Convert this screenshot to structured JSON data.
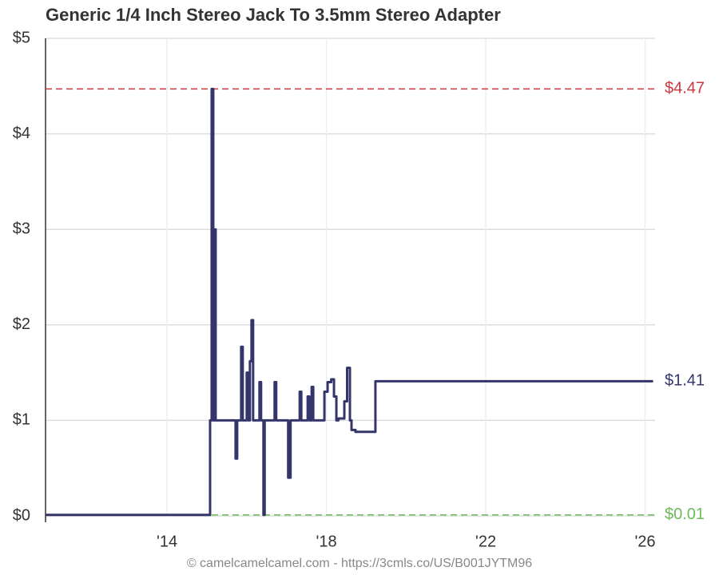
{
  "chart_data": {
    "type": "line",
    "title": "Generic 1/4 Inch Stereo Jack To 3.5mm Stereo Adapter",
    "footer": "© camelcamelcamel.com - https://3cmls.co/US/B001JYTM96",
    "color": "#34366b",
    "x": [
      2010.95,
      2015.08,
      2015.08,
      2015.12,
      2015.12,
      2015.16,
      2015.16,
      2015.2,
      2015.2,
      2015.22,
      2015.22,
      2015.72,
      2015.72,
      2015.76,
      2015.76,
      2015.86,
      2015.86,
      2015.9,
      2015.9,
      2016.0,
      2016.0,
      2016.04,
      2016.04,
      2016.08,
      2016.08,
      2016.12,
      2016.12,
      2016.16,
      2016.16,
      2016.32,
      2016.32,
      2016.36,
      2016.36,
      2016.42,
      2016.42,
      2016.45,
      2016.45,
      2016.7,
      2016.7,
      2016.74,
      2016.74,
      2017.04,
      2017.04,
      2017.1,
      2017.1,
      2017.33,
      2017.33,
      2017.37,
      2017.37,
      2017.53,
      2017.53,
      2017.57,
      2017.57,
      2017.63,
      2017.63,
      2017.67,
      2017.67,
      2017.95,
      2017.95,
      2018.03,
      2018.03,
      2018.12,
      2018.12,
      2018.19,
      2018.19,
      2018.25,
      2018.25,
      2018.3,
      2018.3,
      2018.45,
      2018.45,
      2018.52,
      2018.52,
      2018.59,
      2018.59,
      2018.63,
      2018.63,
      2018.73,
      2018.73,
      2019.23,
      2019.23,
      2026.2
    ],
    "values": [
      0.01,
      0.01,
      1.0,
      1.0,
      4.47,
      4.47,
      1.0,
      1.0,
      3.0,
      3.0,
      1.0,
      1.0,
      0.6,
      0.6,
      1.0,
      1.0,
      1.77,
      1.77,
      1.0,
      1.0,
      1.5,
      1.5,
      1.0,
      1.0,
      1.62,
      1.62,
      2.05,
      2.05,
      1.0,
      1.0,
      1.4,
      1.4,
      1.0,
      1.0,
      0.01,
      0.01,
      1.0,
      1.0,
      1.4,
      1.4,
      1.0,
      1.0,
      0.4,
      0.4,
      1.0,
      1.0,
      1.3,
      1.3,
      1.0,
      1.0,
      1.25,
      1.25,
      1.0,
      1.0,
      1.35,
      1.35,
      1.0,
      1.0,
      1.3,
      1.3,
      1.4,
      1.4,
      1.43,
      1.43,
      1.25,
      1.25,
      1.0,
      1.0,
      1.02,
      1.02,
      1.2,
      1.2,
      1.55,
      1.55,
      1.0,
      1.0,
      0.9,
      0.9,
      0.88,
      0.88,
      1.41,
      1.41
    ],
    "xlim": [
      2010.95,
      2026.25
    ],
    "ylim": [
      0,
      5
    ],
    "xticks": [
      {
        "value": 2014,
        "label": "'14"
      },
      {
        "value": 2018,
        "label": "'18"
      },
      {
        "value": 2022,
        "label": "'22"
      },
      {
        "value": 2026,
        "label": "'26"
      }
    ],
    "yticks": [
      {
        "value": 0,
        "label": "$0"
      },
      {
        "value": 1,
        "label": "$1"
      },
      {
        "value": 2,
        "label": "$2"
      },
      {
        "value": 3,
        "label": "$3"
      },
      {
        "value": 4,
        "label": "$4"
      },
      {
        "value": 5,
        "label": "$5"
      }
    ],
    "grid": true,
    "reference_lines": [
      {
        "value": 4.47,
        "label": "$4.47",
        "color": "#c9383e",
        "dashed": true
      },
      {
        "value": 0.01,
        "label": "$0.01",
        "color": "#6dbb5a",
        "dashed": true
      },
      {
        "value": 1.41,
        "label": "$1.41",
        "color": "#34366b",
        "dashed": false
      }
    ]
  }
}
